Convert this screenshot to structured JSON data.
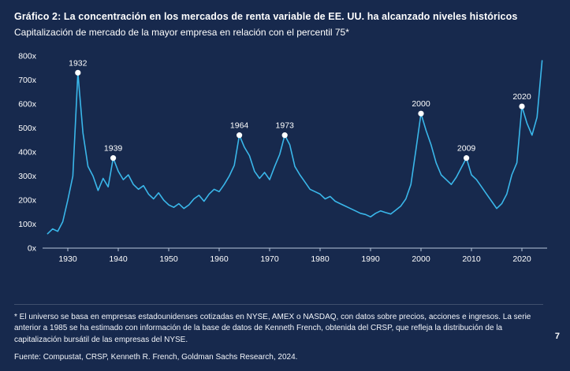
{
  "header": {
    "title": "Gráfico 2: La concentración en los mercados de renta variable de EE. UU. ha alcanzado niveles históricos",
    "subtitle": "Capitalización de mercado de la mayor empresa en relación con el percentil 75*"
  },
  "chart_data": {
    "type": "line",
    "title": "Capitalización de mercado de la mayor empresa en relación con el percentil 75*",
    "xlabel": "",
    "ylabel": "",
    "grid": false,
    "legend": "none",
    "xlim": [
      1925,
      2025
    ],
    "ylim": [
      0,
      800
    ],
    "y_ticks": [
      0,
      100,
      200,
      300,
      400,
      500,
      600,
      700,
      800
    ],
    "y_tick_labels": [
      "0x",
      "100x",
      "200x",
      "300x",
      "400x",
      "500x",
      "600x",
      "700x",
      "800x"
    ],
    "x_ticks": [
      1930,
      1940,
      1950,
      1960,
      1970,
      1980,
      1990,
      2000,
      2010,
      2020
    ],
    "x_tick_labels": [
      "1930",
      "1940",
      "1950",
      "1960",
      "1970",
      "1980",
      "1990",
      "2000",
      "2010",
      "2020"
    ],
    "line_color": "#3ab7ea",
    "annotation_color": "#ffffff",
    "series_name": "Capitalización de mercado de la mayor empresa en relación con el percentil 75",
    "x": [
      1926,
      1927,
      1928,
      1929,
      1930,
      1931,
      1932,
      1933,
      1934,
      1935,
      1936,
      1937,
      1938,
      1939,
      1940,
      1941,
      1942,
      1943,
      1944,
      1945,
      1946,
      1947,
      1948,
      1949,
      1950,
      1951,
      1952,
      1953,
      1954,
      1955,
      1956,
      1957,
      1958,
      1959,
      1960,
      1961,
      1962,
      1963,
      1964,
      1965,
      1966,
      1967,
      1968,
      1969,
      1970,
      1971,
      1972,
      1973,
      1974,
      1975,
      1976,
      1977,
      1978,
      1979,
      1980,
      1981,
      1982,
      1983,
      1984,
      1985,
      1986,
      1987,
      1988,
      1989,
      1990,
      1991,
      1992,
      1993,
      1994,
      1995,
      1996,
      1997,
      1998,
      1999,
      2000,
      2001,
      2002,
      2003,
      2004,
      2005,
      2006,
      2007,
      2008,
      2009,
      2010,
      2011,
      2012,
      2013,
      2014,
      2015,
      2016,
      2017,
      2018,
      2019,
      2020,
      2021,
      2022,
      2023,
      2024
    ],
    "y": [
      60,
      80,
      70,
      110,
      200,
      300,
      730,
      480,
      340,
      300,
      240,
      290,
      255,
      375,
      320,
      285,
      305,
      265,
      245,
      260,
      225,
      205,
      230,
      200,
      180,
      170,
      185,
      165,
      180,
      205,
      220,
      195,
      225,
      245,
      235,
      265,
      300,
      345,
      470,
      420,
      385,
      320,
      290,
      315,
      285,
      340,
      390,
      470,
      430,
      340,
      305,
      275,
      245,
      235,
      225,
      205,
      215,
      195,
      185,
      175,
      165,
      155,
      145,
      140,
      130,
      145,
      155,
      148,
      142,
      158,
      175,
      205,
      265,
      410,
      560,
      490,
      430,
      355,
      305,
      285,
      265,
      295,
      335,
      375,
      305,
      285,
      255,
      225,
      195,
      165,
      185,
      225,
      305,
      355,
      590,
      520,
      470,
      545,
      780
    ],
    "annotations": [
      {
        "label": "1932",
        "x": 1932,
        "y": 730
      },
      {
        "label": "1939",
        "x": 1939,
        "y": 375
      },
      {
        "label": "1964",
        "x": 1964,
        "y": 470
      },
      {
        "label": "1973",
        "x": 1973,
        "y": 470
      },
      {
        "label": "2000",
        "x": 2000,
        "y": 560
      },
      {
        "label": "2009",
        "x": 2009,
        "y": 375
      },
      {
        "label": "2020",
        "x": 2020,
        "y": 590
      }
    ]
  },
  "footer": {
    "footnote": "* El universo se basa en empresas estadounidenses cotizadas en NYSE, AMEX o NASDAQ, con datos sobre precios, acciones e ingresos. La serie anterior a 1985 se ha estimado con información de la base de datos de Kenneth French, obtenida del CRSP, que refleja la distribución de la capitalización bursátil de las empresas del NYSE.",
    "source": "Fuente: Compustat, CRSP, Kenneth R. French, Goldman Sachs Research, 2024.",
    "page_number": "7"
  },
  "colors": {
    "background": "#17294d",
    "line": "#3ab7ea",
    "text": "#ffffff",
    "axis": "#b9c6da"
  }
}
